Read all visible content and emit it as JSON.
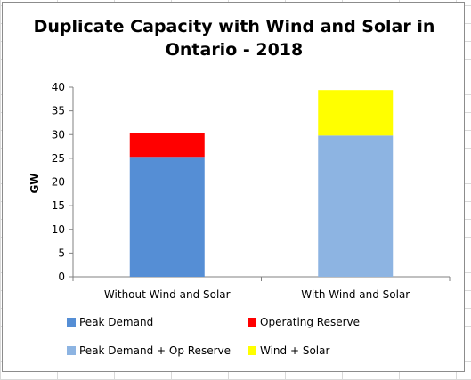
{
  "chart_data": {
    "type": "bar",
    "stacked": true,
    "title_line1": "Duplicate Capacity with Wind and Solar in",
    "title_line2": "Ontario - 2018",
    "ylabel": "GW",
    "xlabel": "",
    "ylim": [
      0,
      40
    ],
    "yticks": [
      "0",
      "5",
      "10",
      "15",
      "20",
      "25",
      "30",
      "35",
      "40"
    ],
    "grid": false,
    "legend_position": "bottom",
    "categories": [
      "Without Wind and Solar",
      "With Wind and Solar"
    ],
    "series": [
      {
        "name": "Peak Demand",
        "color": "#558ED5",
        "values": [
          25.3,
          0
        ]
      },
      {
        "name": "Operating Reserve",
        "color": "#FF0000",
        "values": [
          5.1,
          0
        ]
      },
      {
        "name": "Peak Demand + Op Reserve",
        "color": "#8DB4E2",
        "values": [
          0,
          29.8
        ]
      },
      {
        "name": "Wind + Solar",
        "color": "#FFFF00",
        "values": [
          0,
          9.6
        ]
      }
    ]
  }
}
